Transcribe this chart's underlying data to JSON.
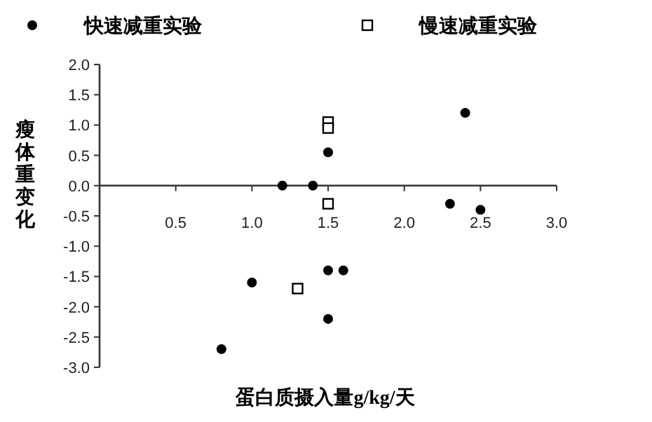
{
  "chart_data": {
    "type": "scatter",
    "xlabel": "蛋白质摄入量g/kg/天",
    "ylabel": "瘦体重变化",
    "xlim": [
      0,
      3
    ],
    "ylim": [
      -3,
      2
    ],
    "xticks": [
      0.5,
      {
        "value": 1,
        "label": "1.0"
      },
      1.5,
      {
        "value": 2,
        "label": "2.0"
      },
      2.5,
      {
        "value": 3,
        "label": "3.0"
      }
    ],
    "yticks": [
      {
        "value": -3,
        "label": "-3.0"
      },
      -2.5,
      {
        "value": -2,
        "label": "-2.0"
      },
      -1.5,
      {
        "value": -1,
        "label": "-1.0"
      },
      -0.5,
      {
        "value": 0,
        "label": "0.0"
      },
      0.5,
      {
        "value": 1,
        "label": "1.0"
      },
      1.5,
      {
        "value": 2,
        "label": "2.0"
      }
    ],
    "legend": "top",
    "grid": false,
    "series": [
      {
        "name": "快速减重实验",
        "color": "#000000",
        "marker": "circle",
        "x": [
          0.8,
          1.0,
          1.2,
          1.4,
          1.5,
          1.5,
          1.6,
          1.5,
          2.3,
          2.4,
          2.5
        ],
        "values": [
          -2.7,
          -1.6,
          0,
          0,
          0.55,
          -1.4,
          -1.4,
          -2.2,
          -0.3,
          1.2,
          -0.4
        ]
      },
      {
        "name": "慢速减重实验",
        "color": "#000000",
        "marker": "square",
        "x": [
          1.5,
          1.5,
          1.3,
          1.5
        ],
        "values": [
          1.05,
          0.95,
          -1.7,
          -0.3
        ]
      }
    ]
  }
}
